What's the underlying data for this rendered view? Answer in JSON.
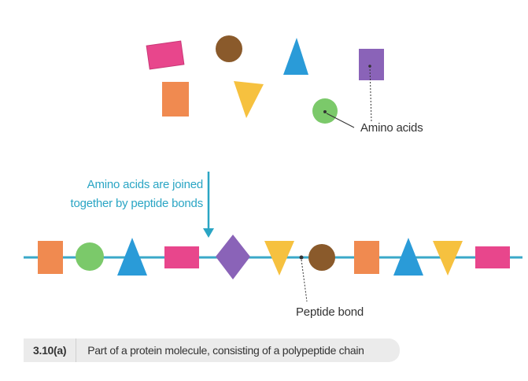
{
  "labels": {
    "amino_acids": "Amino acids",
    "joined_line1": "Amino acids are joined",
    "joined_line2": "together by peptide bonds",
    "peptide_bond": "Peptide bond"
  },
  "caption": {
    "figure_number": "3.10(a)",
    "text": "Part of a protein molecule, consisting of a polypeptide chain"
  },
  "colors": {
    "pink": "#e8468c",
    "brown": "#8a5a2b",
    "blue": "#2a9bd8",
    "purple": "#8a63b8",
    "orange": "#f08a50",
    "yellow": "#f6c13f",
    "green": "#7bc96a",
    "chain_line": "#3aa8c9",
    "note": "#2aa5c4"
  },
  "chain_sequence": [
    "orange-square",
    "green-circle",
    "blue-triangle",
    "pink-rectangle",
    "purple-diamond",
    "yellow-inverted-triangle",
    "brown-circle",
    "orange-square",
    "blue-triangle",
    "yellow-inverted-triangle",
    "pink-rectangle"
  ]
}
